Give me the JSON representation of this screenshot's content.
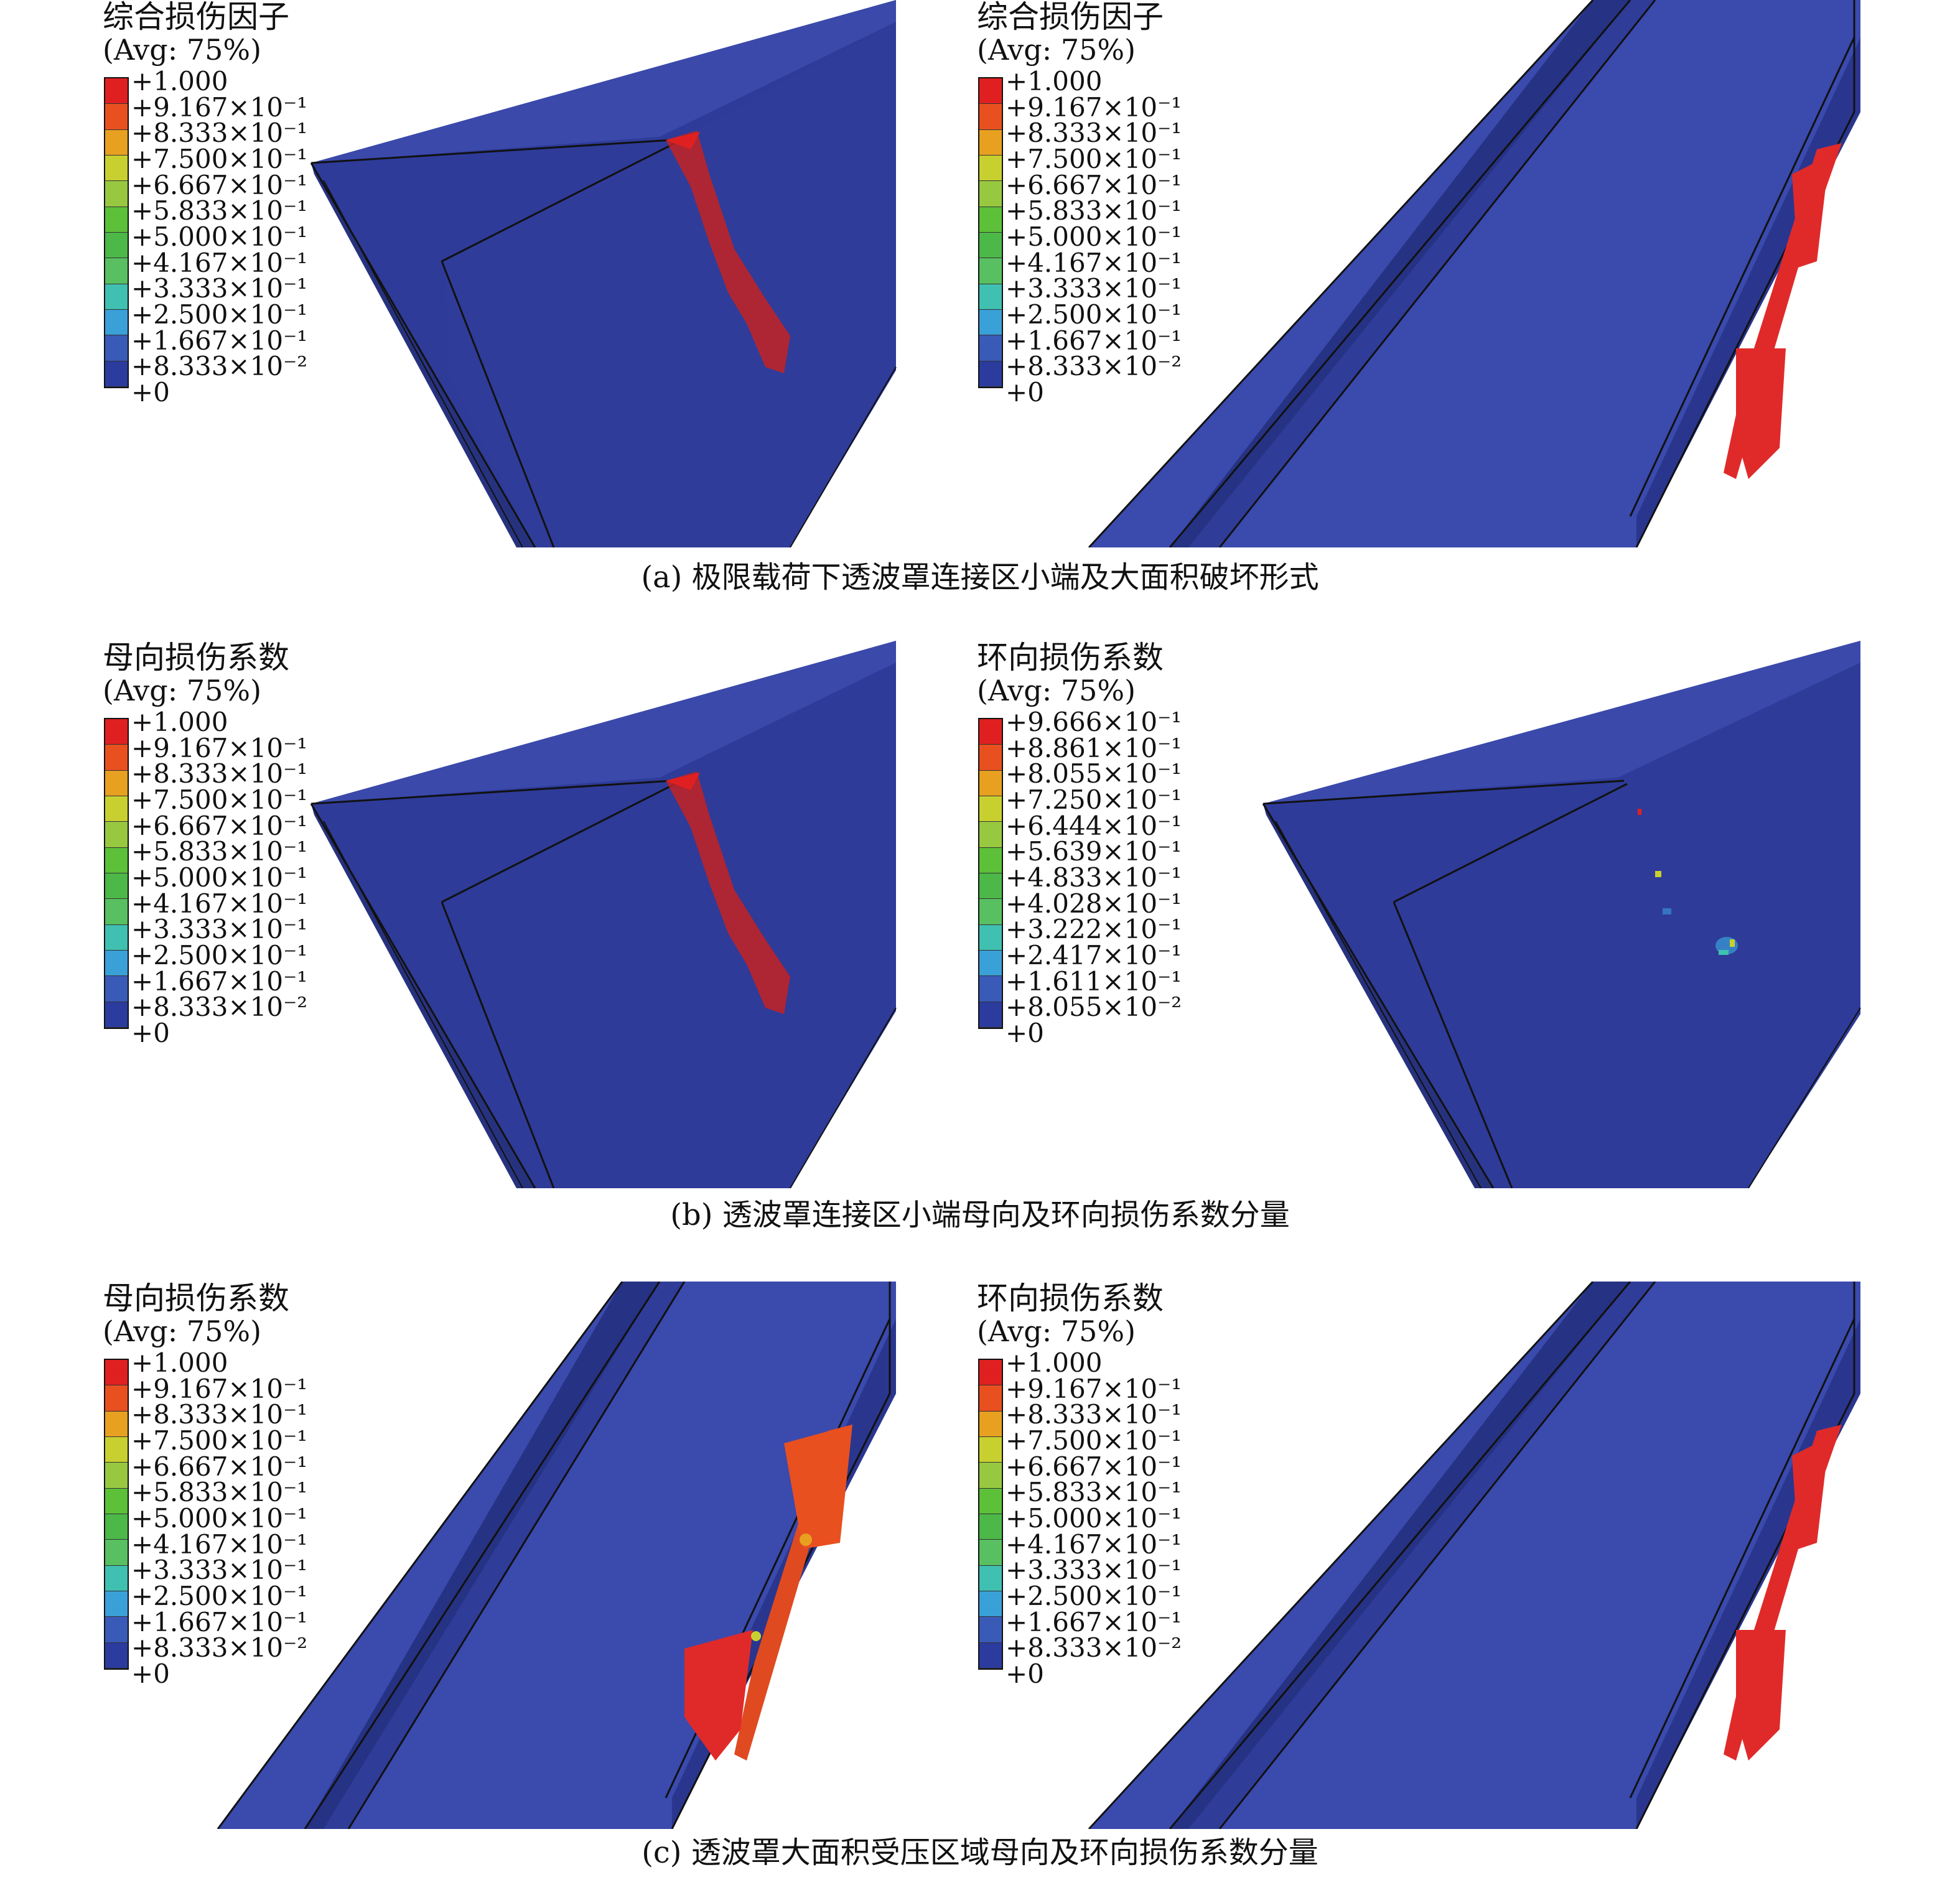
{
  "colors": {
    "contour": [
      "#2b3b9e",
      "#3a5ab8",
      "#3aa0d8",
      "#40c0b0",
      "#58c060",
      "#4cb848",
      "#5cc038",
      "#98c840",
      "#c8d030",
      "#e8a020",
      "#e85020",
      "#e02020"
    ],
    "background": "#ffffff",
    "structure": "#2f3d9c",
    "damage": "#d42020"
  },
  "panels": [
    {
      "id": "a-left",
      "legend": {
        "title": "综合损伤因子",
        "avg": "(Avg: 75%)",
        "ticks": [
          "+1.000",
          "+9.167×10⁻¹",
          "+8.333×10⁻¹",
          "+7.500×10⁻¹",
          "+6.667×10⁻¹",
          "+5.833×10⁻¹",
          "+5.000×10⁻¹",
          "+4.167×10⁻¹",
          "+3.333×10⁻¹",
          "+2.500×10⁻¹",
          "+1.667×10⁻¹",
          "+8.333×10⁻²",
          "+0"
        ]
      }
    },
    {
      "id": "a-right",
      "legend": {
        "title": "综合损伤因子",
        "avg": "(Avg: 75%)",
        "ticks": [
          "+1.000",
          "+9.167×10⁻¹",
          "+8.333×10⁻¹",
          "+7.500×10⁻¹",
          "+6.667×10⁻¹",
          "+5.833×10⁻¹",
          "+5.000×10⁻¹",
          "+4.167×10⁻¹",
          "+3.333×10⁻¹",
          "+2.500×10⁻¹",
          "+1.667×10⁻¹",
          "+8.333×10⁻²",
          "+0"
        ]
      }
    },
    {
      "id": "b-left",
      "legend": {
        "title": "母向损伤系数",
        "avg": "(Avg: 75%)",
        "ticks": [
          "+1.000",
          "+9.167×10⁻¹",
          "+8.333×10⁻¹",
          "+7.500×10⁻¹",
          "+6.667×10⁻¹",
          "+5.833×10⁻¹",
          "+5.000×10⁻¹",
          "+4.167×10⁻¹",
          "+3.333×10⁻¹",
          "+2.500×10⁻¹",
          "+1.667×10⁻¹",
          "+8.333×10⁻²",
          "+0"
        ]
      }
    },
    {
      "id": "b-right",
      "legend": {
        "title": "环向损伤系数",
        "avg": "(Avg: 75%)",
        "ticks": [
          "+9.666×10⁻¹",
          "+8.861×10⁻¹",
          "+8.055×10⁻¹",
          "+7.250×10⁻¹",
          "+6.444×10⁻¹",
          "+5.639×10⁻¹",
          "+4.833×10⁻¹",
          "+4.028×10⁻¹",
          "+3.222×10⁻¹",
          "+2.417×10⁻¹",
          "+1.611×10⁻¹",
          "+8.055×10⁻²",
          "+0"
        ]
      }
    },
    {
      "id": "c-left",
      "legend": {
        "title": "母向损伤系数",
        "avg": "(Avg: 75%)",
        "ticks": [
          "+1.000",
          "+9.167×10⁻¹",
          "+8.333×10⁻¹",
          "+7.500×10⁻¹",
          "+6.667×10⁻¹",
          "+5.833×10⁻¹",
          "+5.000×10⁻¹",
          "+4.167×10⁻¹",
          "+3.333×10⁻¹",
          "+2.500×10⁻¹",
          "+1.667×10⁻¹",
          "+8.333×10⁻²",
          "+0"
        ]
      }
    },
    {
      "id": "c-right",
      "legend": {
        "title": "环向损伤系数",
        "avg": "(Avg: 75%)",
        "ticks": [
          "+1.000",
          "+9.167×10⁻¹",
          "+8.333×10⁻¹",
          "+7.500×10⁻¹",
          "+6.667×10⁻¹",
          "+5.833×10⁻¹",
          "+5.000×10⁻¹",
          "+4.167×10⁻¹",
          "+3.333×10⁻¹",
          "+2.500×10⁻¹",
          "+1.667×10⁻¹",
          "+8.333×10⁻²",
          "+0"
        ]
      }
    }
  ],
  "captions": {
    "a": "(a) 极限载荷下透波罩连接区小端及大面积破坏形式",
    "b": "(b) 透波罩连接区小端母向及环向损伤系数分量",
    "c": "(c) 透波罩大面积受压区域母向及环向损伤系数分量"
  }
}
